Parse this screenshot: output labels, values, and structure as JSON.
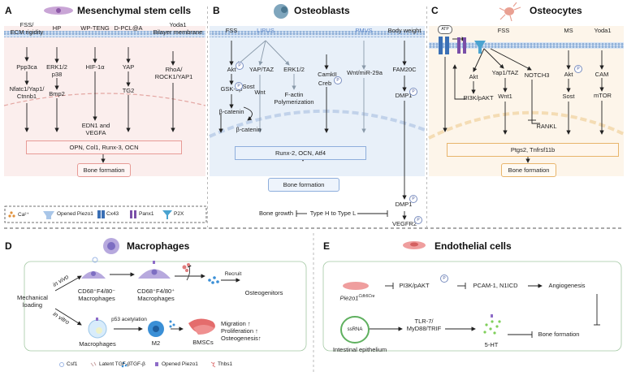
{
  "panels": {
    "a": {
      "letter": "A",
      "title": "Mesenchymal stem cells",
      "stimuli": [
        "FSS/\nECM rigidity",
        "HP",
        "WP-TENG",
        "D-PCL@A",
        "Yoda1\nBilayer membrane"
      ],
      "nodes": {
        "ppp3ca": "Ppp3ca",
        "nfatc1": "Nfatc1/Yap1/\nCtnnb1",
        "erk": "ERK1/2\np38",
        "bmp2": "Bmp2",
        "hif": "HIF-1α",
        "yap": "YAP",
        "tg2": "TG2",
        "rhoa": "RhoA/\nROCK1/YAP1",
        "edn1": "EDN1 and\nVEGFA"
      },
      "outcome": "OPN, Col1, Runx-3, OCN",
      "result": "Bone formation"
    },
    "b": {
      "letter": "B",
      "title": "Osteoblasts",
      "stimuli": [
        "FSS",
        "LIPUS",
        "PMVS",
        "Body weight"
      ],
      "nodes": {
        "akt": "Akt",
        "gsk": "GSK-3β",
        "bcat1": "β-catenin",
        "bcat2": "β-catenin",
        "yaptaz": "YAP/TAZ",
        "wnt": "Wnt",
        "sost": "Sost",
        "erk12": "ERK1/2",
        "factin": "F-actin\nPolymerization",
        "camkii": "CamkII",
        "creb": "Creb",
        "wntmir": "Wnt/miR-29a",
        "fam20c": "FAM20C",
        "dmp1a": "DMP1",
        "dmp1b": "DMP1",
        "vegfr2": "VEGFR2",
        "typeh": "Type H to Type L",
        "bonegrowth": "Bone growth"
      },
      "outcome": "Runx-2, OCN, Atf4",
      "result": "Bone formation"
    },
    "c": {
      "letter": "C",
      "title": "Osteocytes",
      "stimuli": [
        "FSS",
        "MS",
        "Yoda1"
      ],
      "atp": "ATP",
      "nodes": {
        "akt": "Akt",
        "yap1taz": "Yap1/TAZ",
        "notch3": "NOTCH3",
        "akt2": "Akt",
        "cam": "CAM",
        "pi3k": "PI3K/pAKT",
        "wnt1": "Wnt1",
        "rankl": "RANKL",
        "sost": "Sost",
        "mtor": "mTOR"
      },
      "outcome": "Ptgs2, Tnfrsf11b",
      "result": "Bone formation"
    },
    "d": {
      "letter": "D",
      "title": "Macrophages",
      "nodes": {
        "invivo": "in vivo",
        "invitro": "in vitro",
        "mech": "Mechanical\nloading",
        "cd68a": "CD68⁺F4/80⁻\nMacrophages",
        "cd68b": "CD68⁺F4/80⁺\nMacrophages",
        "recruit": "Recruit",
        "osteo": "Osteogenitors",
        "p53": "p53 acetylation",
        "macro": "Macrophages",
        "m2": "M2",
        "bmscs": "BMSCs",
        "effects": "Migration ↑\nProliferation ↑\nOsteogenesis↑"
      },
      "legend": [
        "Csf1",
        "Latent TGF-β",
        "TGF-β",
        "Opened Piezo1",
        "Thbs1"
      ]
    },
    "e": {
      "letter": "E",
      "title": "Endothelial cells",
      "nodes": {
        "piezo": "Piezo1",
        "piezo_sup": "Cdh5Cre",
        "pi3k": "PI3K/pAKT",
        "pcam": "PCAM-1, N1ICD",
        "angio": "Angiogenesis",
        "ssrna": "ssRNA",
        "tlr": "TLR-7/\nMyD88/TRIF",
        "ht5": "5-HT",
        "boneform": "Bone formation",
        "intestinal": "Intestinal epithelium"
      }
    }
  },
  "legend_top": {
    "ca": "Ca²⁺",
    "piezo": "Opened Piezo1",
    "cx43": "Cx43",
    "panx1": "Panx1",
    "p2x": "P2X"
  },
  "p_badge": "P",
  "colors": {
    "panel_a_bg": "#fbeeed",
    "panel_b_bg": "#e8f0f9",
    "panel_c_bg": "#fdf5ea",
    "membrane": "#9ab8dc",
    "salmon": "#e79b96",
    "blue_accent": "#5a84c8"
  }
}
